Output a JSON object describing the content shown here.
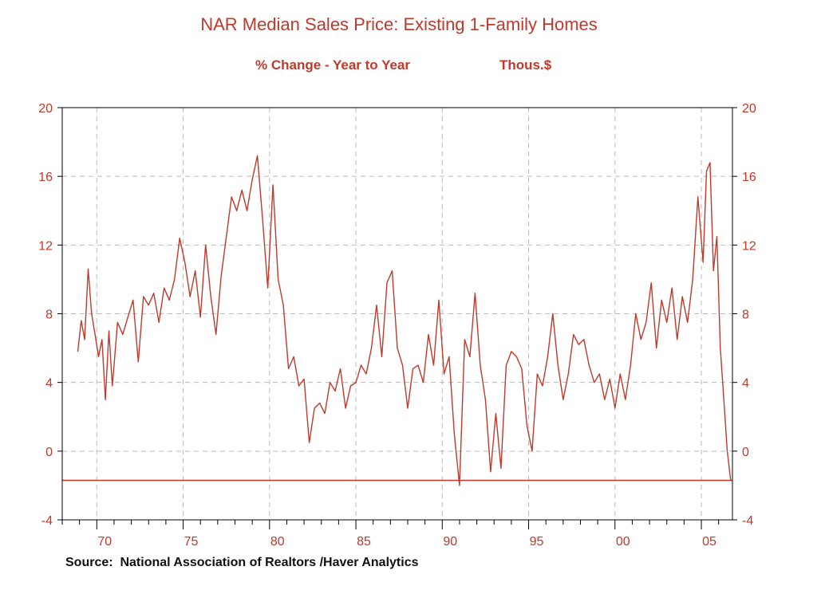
{
  "chart_title": "NAR Median Sales Price: Existing 1-Family Homes",
  "chart_subtitle": "% Change - Year to Year",
  "units_label": "Thous.$",
  "source": "Source:  National Association of Realtors /Haver Analytics",
  "colors": {
    "line": "#c0392b",
    "text": "#c0392b",
    "grid": "#bbbbbb",
    "axis": "#000000"
  },
  "chart_data": {
    "type": "line",
    "title": "NAR Median Sales Price: Existing 1-Family Homes",
    "subtitle": "% Change - Year to Year",
    "units": "Thous.$",
    "xlim": [
      1968.0,
      2006.8
    ],
    "ylim": [
      -4,
      20
    ],
    "y_ticks": [
      20,
      16,
      12,
      8,
      4,
      0,
      -4
    ],
    "y_tick_labels": [
      "20",
      "16",
      "12",
      "8",
      "4",
      "0",
      "-4"
    ],
    "x_ticks": [
      1970,
      1975,
      1980,
      1985,
      1990,
      1995,
      2000,
      2005
    ],
    "x_tick_labels": [
      "70",
      "75",
      "80",
      "85",
      "90",
      "95",
      "00",
      "05"
    ],
    "grid": true,
    "dual_y_axis": true,
    "reference_line": -1.7,
    "series": [
      {
        "x": [
          1968.9,
          1969.1,
          1969.3,
          1969.5,
          1969.7,
          1969.9,
          1970.1,
          1970.3,
          1970.5,
          1970.7,
          1970.9,
          1971.2,
          1971.5,
          1971.8,
          1972.1,
          1972.4,
          1972.7,
          1973.0,
          1973.3,
          1973.6,
          1973.9,
          1974.2,
          1974.5,
          1974.8,
          1975.1,
          1975.4,
          1975.7,
          1976.0,
          1976.3,
          1976.6,
          1976.9,
          1977.2,
          1977.5,
          1977.8,
          1978.1,
          1978.4,
          1978.7,
          1979.0,
          1979.3,
          1979.6,
          1979.9,
          1980.2,
          1980.5,
          1980.8,
          1981.1,
          1981.4,
          1981.7,
          1982.0,
          1982.3,
          1982.6,
          1982.9,
          1983.2,
          1983.5,
          1983.8,
          1984.1,
          1984.4,
          1984.7,
          1985.0,
          1985.3,
          1985.6,
          1985.9,
          1986.2,
          1986.5,
          1986.8,
          1987.1,
          1987.4,
          1987.7,
          1988.0,
          1988.3,
          1988.6,
          1988.9,
          1989.2,
          1989.5,
          1989.8,
          1990.1,
          1990.4,
          1990.7,
          1991.0,
          1991.3,
          1991.6,
          1991.9,
          1992.2,
          1992.5,
          1992.8,
          1993.1,
          1993.4,
          1993.7,
          1994.0,
          1994.3,
          1994.6,
          1994.9,
          1995.2,
          1995.5,
          1995.8,
          1996.1,
          1996.4,
          1996.7,
          1997.0,
          1997.3,
          1997.6,
          1997.9,
          1998.2,
          1998.5,
          1998.8,
          1999.1,
          1999.4,
          1999.7,
          2000.0,
          2000.3,
          2000.6,
          2000.9,
          2001.2,
          2001.5,
          2001.8,
          2002.1,
          2002.4,
          2002.7,
          2003.0,
          2003.3,
          2003.6,
          2003.9,
          2004.2,
          2004.5,
          2004.8,
          2005.1,
          2005.3,
          2005.5,
          2005.7,
          2005.9,
          2006.1,
          2006.3,
          2006.5,
          2006.7
        ],
        "values": [
          5.8,
          7.6,
          6.5,
          10.6,
          8.0,
          6.8,
          5.5,
          6.5,
          3.0,
          7.0,
          3.8,
          7.5,
          6.8,
          7.8,
          8.8,
          5.2,
          9.0,
          8.5,
          9.2,
          7.5,
          9.5,
          8.8,
          10.0,
          12.4,
          11.0,
          9.0,
          10.5,
          7.8,
          12.0,
          9.0,
          6.8,
          10.2,
          12.5,
          14.8,
          14.0,
          15.2,
          14.0,
          15.8,
          17.2,
          13.5,
          9.5,
          15.5,
          10.0,
          8.5,
          4.8,
          5.5,
          3.8,
          4.2,
          0.5,
          2.5,
          2.8,
          2.2,
          4.0,
          3.5,
          4.8,
          2.5,
          3.8,
          4.0,
          5.0,
          4.5,
          6.0,
          8.5,
          5.5,
          9.8,
          10.5,
          6.0,
          5.0,
          2.5,
          4.8,
          5.0,
          4.0,
          6.8,
          5.0,
          8.8,
          4.5,
          5.5,
          1.0,
          -2.0,
          6.5,
          5.5,
          9.2,
          5.0,
          3.0,
          -1.2,
          2.2,
          -1.0,
          5.0,
          5.8,
          5.5,
          4.8,
          1.5,
          0.0,
          4.5,
          3.8,
          5.5,
          8.0,
          5.0,
          3.0,
          4.5,
          6.8,
          6.2,
          6.5,
          5.0,
          4.0,
          4.5,
          3.0,
          4.2,
          2.5,
          4.5,
          3.0,
          5.0,
          8.0,
          6.5,
          7.5,
          9.8,
          6.0,
          8.8,
          7.5,
          9.5,
          6.5,
          9.0,
          7.5,
          10.0,
          14.8,
          11.0,
          16.3,
          16.8,
          10.5,
          12.5,
          6.0,
          3.0,
          0.0,
          -1.7
        ]
      }
    ]
  }
}
